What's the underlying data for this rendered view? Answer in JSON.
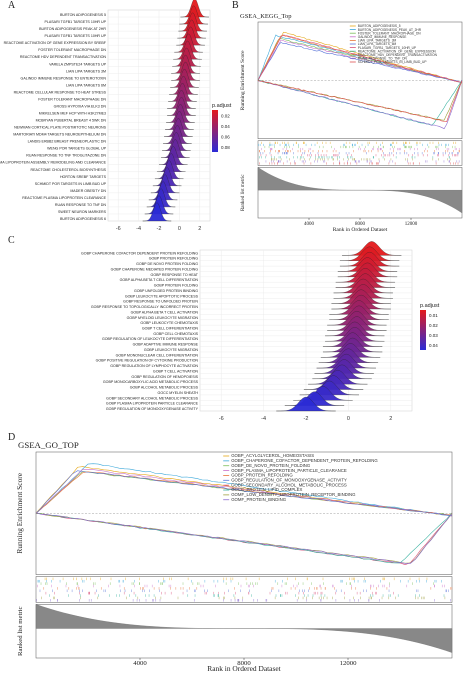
{
  "figure": {
    "panels": [
      {
        "letter": "A"
      },
      {
        "letter": "B"
      },
      {
        "letter": "C"
      },
      {
        "letter": "D"
      }
    ]
  },
  "chart_data": [
    {
      "panel": "A",
      "type": "ridgeline",
      "categories": [
        "BURTON ADIPOGENESIS 5",
        "PLASARI TGFB1 TARGETS 10HR UP",
        "BURTON ADIPOGENESIS PEAK AT 2HR",
        "PLASARI TGFB1 TARGETS 10HR UP",
        "REACTOME ACTIVATION OF GENE EXPRESSION BY SREBF",
        "FOSTER TOLERANT MACROPHAGE DN",
        "REACTOME HDV DEPENDENT TRANSACTIVATION",
        "VARELA ZMPSTE24 TARGETS UP",
        "LIAN LIPA TARGETS 3M",
        "GALINDO IMMUNE RESPONSE TO ENTEROTOXIN",
        "LIAN LIPA TARGETS 6M",
        "REACTOME CELLULAR RESPONSE TO HEAT STRESS",
        "FOSTER TOLERANT MACROPHAGE DN",
        "GROSS HYPOXIA VIA ELK3 DN",
        "MIKKELSEN MEF HCP WITH H3K27ME3",
        "MCBRYAN PUBERTAL BREAST 4 5WK DN",
        "NEWMAN CORTICAL PLATE POSTMITOTIC NEURONS",
        "MARTORIATI MDM4 TARGETS NEUROEPITHELIUM DN",
        "LANDIS ERBB2 BREAST PRENEOPLASTIC DN",
        "WENG POR TARGETS GLOBAL UP",
        "RUAN RESPONSE TO TNF TROGLITAZONE DN",
        "REACTOME PLASMA LIPOPROTEIN ASSEMBLY REMODELING AND CLEARANCE",
        "REACTOME CHOLESTEROL BIOSYNTHESIS",
        "HORTON SREBF TARGETS",
        "SCHMIDT POR TARGETS IN LIMB BUD UP",
        "MADER OBESITY DN",
        "REACTOME PLASMA LIPOPROTEIN CLEARANCE",
        "RUAN RESPONSE TO TNF DN",
        "SWEET NEURON MARKERS",
        "BURTON ADIPOGENESIS 6"
      ],
      "peak_positions": [
        1.5,
        1.4,
        1.3,
        1.2,
        1.1,
        0.9,
        0.8,
        0.7,
        0.6,
        0.6,
        0.5,
        0.4,
        0.3,
        0.2,
        0.2,
        0.1,
        0.0,
        -0.1,
        -0.2,
        -0.3,
        -0.4,
        -0.6,
        -0.8,
        -1.0,
        -1.2,
        -1.4,
        -1.6,
        -1.8,
        -2.0,
        -2.2
      ],
      "xticks": [
        -6,
        -4,
        -2,
        0,
        2
      ],
      "xlim": [
        -7,
        3
      ],
      "legend_title": "p.adjust",
      "legend_values": [
        "0.02",
        "0.04",
        "0.06",
        "0.08"
      ],
      "legend_position": "right",
      "color_low": "#e41a1c",
      "color_high": "#2b2bd6"
    },
    {
      "panel": "B",
      "type": "line",
      "title": "GSEA_KEGG_Top",
      "ylabel": "Running Enrichment Score",
      "ylabel2": "Ranked list metric",
      "xlabel": "Rank in Ordered Dataset",
      "xticks": [
        4000,
        8000,
        12000
      ],
      "xlim": [
        0,
        16000
      ],
      "series": [
        {
          "name": "BURTON_ADIPOGENESIS_5",
          "color": "#e6a817"
        },
        {
          "name": "BURTON_ADIPOGENESIS_PEAK_AT_2HR",
          "color": "#3aa7d9"
        },
        {
          "name": "FOSTER_TOLERANT_MACROPHAGE_DN",
          "color": "#7bbf5a"
        },
        {
          "name": "GALINDO_IMMUNE_RESPONSE",
          "color": "#c970c9"
        },
        {
          "name": "LIAN_LIPA_TARGETS_3M",
          "color": "#e8743b"
        },
        {
          "name": "LIAN_LIPA_TARGETS_6M",
          "color": "#5a74d9"
        },
        {
          "name": "PLASARI_TGFB1_TARGETS_10HR_UP",
          "color": "#d94f7a"
        },
        {
          "name": "REACTOME_ACTIVATION_OF_GENE_EXPRESSION",
          "color": "#38b2a0"
        },
        {
          "name": "REACTOME_HDV_DEPENDENT_TRANSACTIVATION",
          "color": "#a0a040"
        },
        {
          "name": "RUAN_RESPONSE_TO_TNF_DN",
          "color": "#8c6bd1"
        },
        {
          "name": "SCHMIDT_POR_TARGETS_IN_LIMB_BUD_UP",
          "color": "#e05050"
        }
      ]
    },
    {
      "panel": "C",
      "type": "ridgeline",
      "categories": [
        "GOBP CHAPERONE COFACTOR DEPENDENT PROTEIN REFOLDING",
        "GOBP PROTEIN REFOLDING",
        "GOBP DE NOVO PROTEIN FOLDING",
        "GOBP CHAPERONE MEDIATED PROTEIN FOLDING",
        "GOBP RESPONSE TO HEAT",
        "GOBP ALPHA BETA T CELL DIFFERENTIATION",
        "GOBP PROTEIN FOLDING",
        "GOBP UNFOLDED PROTEIN BINDING",
        "GOBP LEUKOCYTE APOPTOTIC PROCESS",
        "GOBP RESPONSE TO UNFOLDED PROTEIN",
        "GOBP RESPONSE TO TOPOLOGICALLY INCORRECT PROTEIN",
        "GOBP ALPHA BETA T CELL ACTIVATION",
        "GOBP MYELOID LEUKOCYTE MIGRATION",
        "GOBP LEUKOCYTE CHEMOTAXIS",
        "GOBP T CELL DIFFERENTIATION",
        "GOBP CELL CHEMOTAXIS",
        "GOBP REGULATION OF LEUKOCYTE DIFFERENTIATION",
        "GOBP ADAPTIVE IMMUNE RESPONSE",
        "GOBP LEUKOCYTE MIGRATION",
        "GOBP MONONUCLEAR CELL DIFFERENTIATION",
        "GOBP POSITIVE REGULATION OF CYTOKINE PRODUCTION",
        "GOBP REGULATION OF LYMPHOCYTE ACTIVATION",
        "GOBP T CELL ACTIVATION",
        "GOBP REGULATION OF HEMOPOIESIS",
        "GOBP MONOCARBOXYLIC ACID METABOLIC PROCESS",
        "GOBP ALCOHOL METABOLIC PROCESS",
        "GOCC MYELIN SHEATH",
        "GOBP SECONDARY ALCOHOL METABOLIC PROCESS",
        "GOBP PLASMA LIPOPROTEIN PARTICLE CLEARANCE",
        "GOBP REGULATION OF MONOOXYGENASE ACTIVITY"
      ],
      "peak_positions": [
        1.1,
        1.0,
        1.0,
        0.9,
        0.9,
        0.8,
        0.8,
        0.7,
        0.7,
        0.6,
        0.6,
        0.5,
        0.5,
        0.4,
        0.4,
        0.3,
        0.3,
        0.2,
        0.2,
        0.1,
        0.0,
        -0.1,
        -0.2,
        -0.3,
        -0.5,
        -0.7,
        -0.9,
        -1.2,
        -1.6,
        -2.0
      ],
      "xticks": [
        -6,
        -4,
        -2,
        0,
        2
      ],
      "xlim": [
        -7,
        3
      ],
      "legend_title": "p.adjust",
      "legend_values": [
        "0.01",
        "0.02",
        "0.03",
        "0.04"
      ],
      "legend_position": "right",
      "color_low": "#e41a1c",
      "color_high": "#2b2bd6"
    },
    {
      "panel": "D",
      "type": "line",
      "title": "GSEA_GO_TOP",
      "ylabel": "Running Enrichment Score",
      "ylabel2": "Ranked list metric",
      "xlabel": "Rank in Ordered Dataset",
      "xticks": [
        4000,
        8000,
        12000
      ],
      "xlim": [
        0,
        16000
      ],
      "series": [
        {
          "name": "GOBP_ACYLGLYCEROL_HOMEOSTASIS",
          "color": "#e6a817"
        },
        {
          "name": "GOBP_CHAPERONE_COFACTOR_DEPENDENT_PROTEIN_REFOLDING",
          "color": "#3aa7d9"
        },
        {
          "name": "GOBP_DE_NOVO_PROTEIN_FOLDING",
          "color": "#7bbf5a"
        },
        {
          "name": "GOBP_PLASMA_LIPOPROTEIN_PARTICLE_CLEARANCE",
          "color": "#c970c9"
        },
        {
          "name": "GOBP_PROTEIN_REFOLDING",
          "color": "#e8743b"
        },
        {
          "name": "GOBP_REGULATION_OF_MONOOXYGENASE_ACTIVITY",
          "color": "#5a74d9"
        },
        {
          "name": "GOBP_SECONDARY_ALCOHOL_METABOLIC_PROCESS",
          "color": "#d94f7a"
        },
        {
          "name": "GOCC_PROTEIN_LIPID_COMPLEX",
          "color": "#38b2a0"
        },
        {
          "name": "GOMF_LOW_DENSITY_LIPOPROTEIN_RECEPTOR_BINDING",
          "color": "#a0a040"
        },
        {
          "name": "GOMF_PROTEIN_BINDING",
          "color": "#8c6bd1"
        }
      ]
    }
  ]
}
